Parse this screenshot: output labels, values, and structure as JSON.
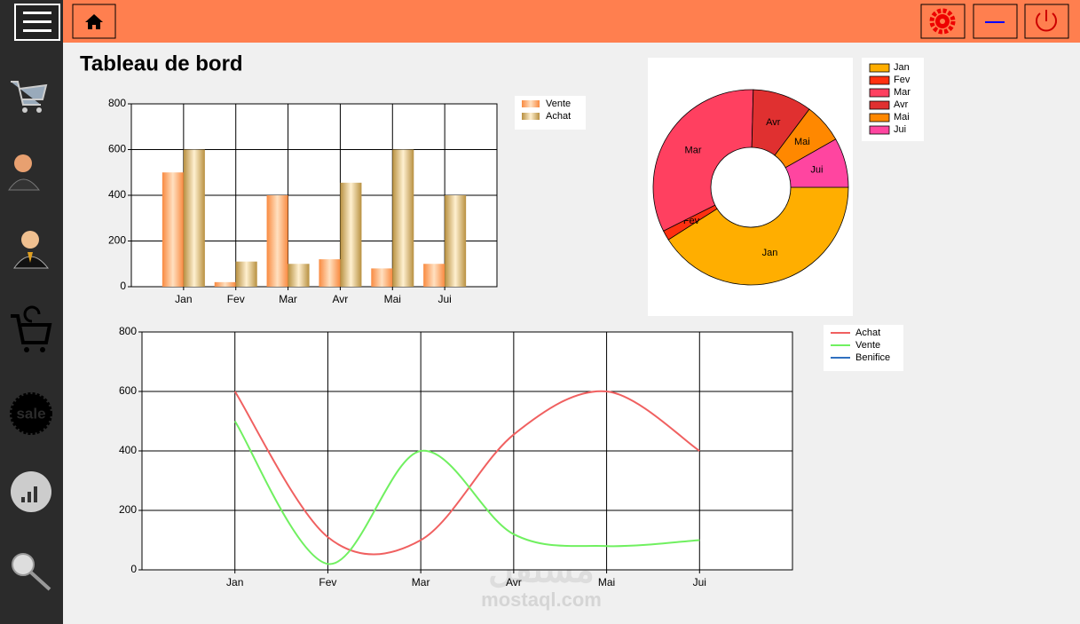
{
  "title": "Tableau de bord",
  "watermark": [
    "مستقل",
    "mostaql.com"
  ],
  "chart_data": [
    {
      "type": "bar",
      "categories": [
        "Jan",
        "Fev",
        "Mar",
        "Avr",
        "Mai",
        "Jui"
      ],
      "series": [
        {
          "name": "Vente",
          "color": "#f9a060",
          "values": [
            500,
            20,
            400,
            120,
            80,
            100
          ]
        },
        {
          "name": "Achat",
          "color": "#c8a050",
          "values": [
            600,
            110,
            100,
            455,
            600,
            400
          ]
        }
      ],
      "ylim": [
        0,
        800
      ],
      "yticks": [
        0,
        200,
        400,
        600,
        800
      ],
      "grid": true
    },
    {
      "type": "pie",
      "categories": [
        "Jan",
        "Fev",
        "Mar",
        "Avr",
        "Mai",
        "Jui"
      ],
      "values": [
        500,
        20,
        400,
        120,
        80,
        100
      ],
      "colors": [
        "#ffae00",
        "#ff3010",
        "#ff4060",
        "#e03030",
        "#ff8800",
        "#ff45a0"
      ]
    },
    {
      "type": "line",
      "categories": [
        "Jan",
        "Fev",
        "Mar",
        "Avr",
        "Mai",
        "Jui"
      ],
      "series": [
        {
          "name": "Achat",
          "color": "#f06060",
          "values": [
            600,
            110,
            100,
            455,
            600,
            400
          ]
        },
        {
          "name": "Vente",
          "color": "#70f060",
          "values": [
            500,
            20,
            400,
            120,
            80,
            100
          ]
        },
        {
          "name": "Benifice",
          "color": "#3070c0",
          "values": [
            null,
            null,
            null,
            null,
            null,
            null
          ]
        }
      ],
      "ylim": [
        0,
        800
      ],
      "yticks": [
        0,
        200,
        400,
        600,
        800
      ],
      "grid": true
    }
  ]
}
